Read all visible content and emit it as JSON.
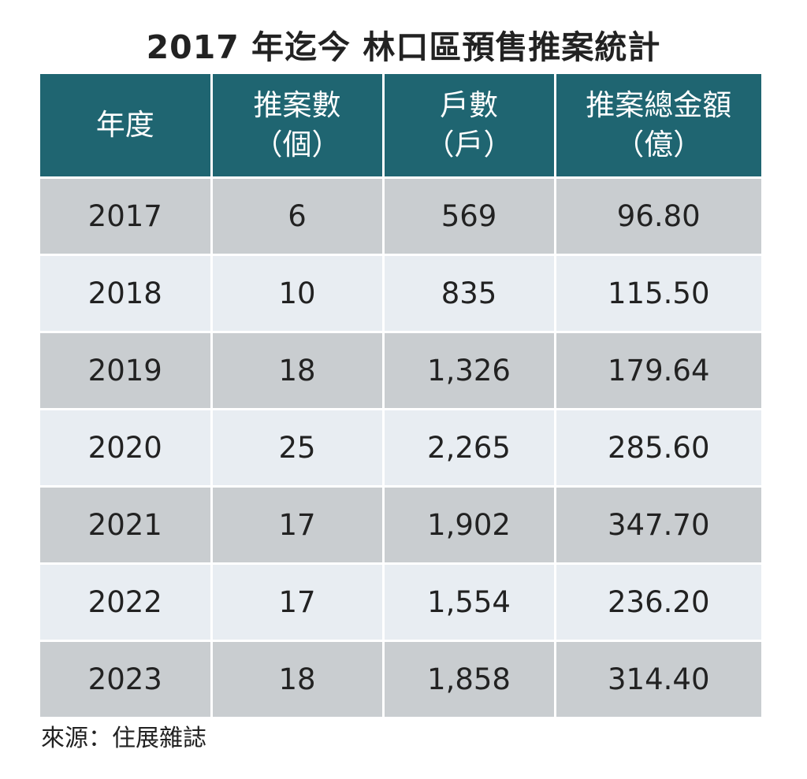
{
  "chart_data": {
    "type": "table",
    "title": "2017 年迄今 林口區預售推案統計",
    "columns": [
      {
        "line1": "年度",
        "line2": ""
      },
      {
        "line1": "推案數",
        "line2": "（個）"
      },
      {
        "line1": "戶數",
        "line2": "（戶）"
      },
      {
        "line1": "推案總金額",
        "line2": "（億）"
      }
    ],
    "rows": [
      [
        "2017",
        "6",
        "569",
        "96.80"
      ],
      [
        "2018",
        "10",
        "835",
        "115.50"
      ],
      [
        "2019",
        "18",
        "1,326",
        "179.64"
      ],
      [
        "2020",
        "25",
        "2,265",
        "285.60"
      ],
      [
        "2021",
        "17",
        "1,902",
        "347.70"
      ],
      [
        "2022",
        "17",
        "1,554",
        "236.20"
      ],
      [
        "2023",
        "18",
        "1,858",
        "314.40"
      ]
    ],
    "source": "來源：住展雜誌"
  },
  "colors": {
    "header_bg": "#1f6571",
    "row_odd": "#c9cdd0",
    "row_even": "#e8edf2"
  }
}
